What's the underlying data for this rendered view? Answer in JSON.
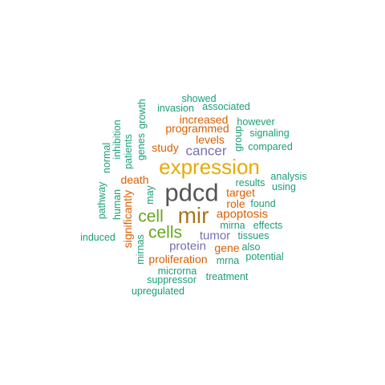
{
  "colors": {
    "teal": "#1b9e77",
    "orange": "#d95f02",
    "purple": "#7570b3",
    "green": "#66a61e",
    "gold": "#e6ab02",
    "brown": "#a6761d",
    "gray": "#555555"
  },
  "words": {
    "pdcd": "pdcd",
    "expression": "expression",
    "mir": "mir",
    "cell": "cell",
    "cells": "cells",
    "cancer": "cancer",
    "apoptosis": "apoptosis",
    "protein": "protein",
    "tumor": "tumor",
    "death": "death",
    "target": "target",
    "study": "study",
    "levels": "levels",
    "increased": "increased",
    "programmed": "programmed",
    "role": "role",
    "gene": "gene",
    "proliferation": "proliferation",
    "significantly": "significantly",
    "showed": "showed",
    "invasion": "invasion",
    "associated": "associated",
    "however": "however",
    "signaling": "signaling",
    "compared": "compared",
    "group": "group",
    "growth": "growth",
    "genes": "genes",
    "inhibition": "inhibition",
    "patients": "patients",
    "normal": "normal",
    "human": "human",
    "may": "may",
    "pathway": "pathway",
    "analysis": "analysis",
    "using": "using",
    "results": "results",
    "found": "found",
    "mirna": "mirna",
    "effects": "effects",
    "tissues": "tissues",
    "also": "also",
    "potential": "potential",
    "mrna": "mrna",
    "induced": "induced",
    "mirnas": "mirnas",
    "microrna": "microrna",
    "suppressor": "suppressor",
    "treatment": "treatment",
    "upregulated": "upregulated"
  }
}
